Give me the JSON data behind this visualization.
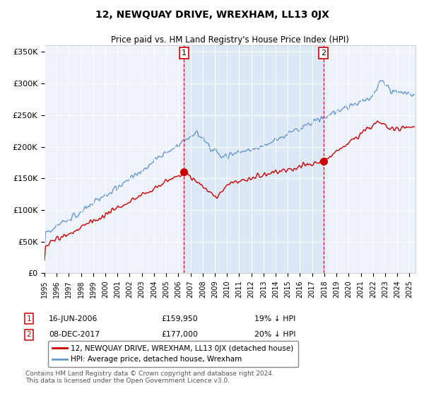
{
  "title": "12, NEWQUAY DRIVE, WREXHAM, LL13 0JX",
  "subtitle": "Price paid vs. HM Land Registry's House Price Index (HPI)",
  "legend_label_red": "12, NEWQUAY DRIVE, WREXHAM, LL13 0JX (detached house)",
  "legend_label_blue": "HPI: Average price, detached house, Wrexham",
  "annotation1_date": "16-JUN-2006",
  "annotation1_price": "£159,950",
  "annotation1_hpi": "19% ↓ HPI",
  "annotation2_date": "08-DEC-2017",
  "annotation2_price": "£177,000",
  "annotation2_hpi": "20% ↓ HPI",
  "footer": "Contains HM Land Registry data © Crown copyright and database right 2024.\nThis data is licensed under the Open Government Licence v3.0.",
  "vline1_x": 2006.46,
  "vline2_x": 2017.93,
  "marker1_price": 159950,
  "marker2_price": 177000,
  "ylim_min": 0,
  "ylim_max": 360000,
  "xlim_min": 1995,
  "xlim_max": 2025.5,
  "yticks": [
    0,
    50000,
    100000,
    150000,
    200000,
    250000,
    300000,
    350000
  ],
  "ytick_labels": [
    "£0",
    "£50K",
    "£100K",
    "£150K",
    "£200K",
    "£250K",
    "£300K",
    "£350K"
  ],
  "xticks": [
    1995,
    1996,
    1997,
    1998,
    1999,
    2000,
    2001,
    2002,
    2003,
    2004,
    2005,
    2006,
    2007,
    2008,
    2009,
    2010,
    2011,
    2012,
    2013,
    2014,
    2015,
    2016,
    2017,
    2018,
    2019,
    2020,
    2021,
    2022,
    2023,
    2024,
    2025
  ],
  "red_color": "#cc0000",
  "blue_color": "#6699cc",
  "blue_fill_color": "#ddeeff",
  "vline_color": "#cc0000",
  "background_color": "#eef2fb",
  "shaded_background": "#dce8f5"
}
